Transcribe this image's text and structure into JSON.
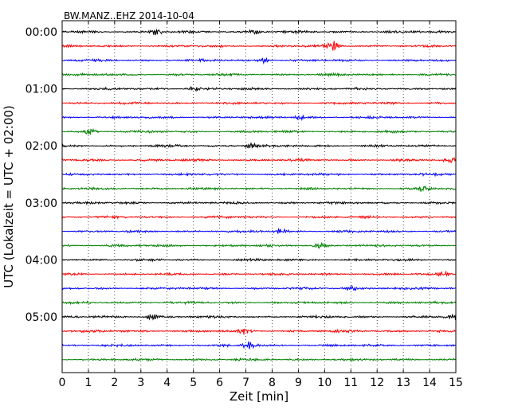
{
  "chart_data": {
    "type": "line",
    "title": "BW.MANZ..EHZ 2014-10-04",
    "xlabel": "Zeit  [min]",
    "ylabel": "UTC (Lokalzeit = UTC + 02:00)",
    "xlim": [
      0,
      15
    ],
    "xticks": [
      "0",
      "1",
      "2",
      "3",
      "4",
      "5",
      "6",
      "7",
      "8",
      "9",
      "10",
      "11",
      "12",
      "13",
      "14",
      "15"
    ],
    "yticks": [
      "00:00",
      "01:00",
      "02:00",
      "03:00",
      "04:00",
      "05:00"
    ],
    "trace_interval_min": 15,
    "n_traces": 24,
    "grid": "vertical dotted at each minute",
    "trace_colors": [
      "#000000",
      "#ff0000",
      "#0000ff",
      "#008000"
    ],
    "bursts": [
      {
        "trace": 0,
        "x": 3.6,
        "amp": 1.8
      },
      {
        "trace": 0,
        "x": 7.3,
        "amp": 1.5
      },
      {
        "trace": 1,
        "x": 10.3,
        "amp": 3.0
      },
      {
        "trace": 2,
        "x": 7.7,
        "amp": 1.6
      },
      {
        "trace": 4,
        "x": 5.0,
        "amp": 1.8
      },
      {
        "trace": 6,
        "x": 9.1,
        "amp": 1.5
      },
      {
        "trace": 7,
        "x": 1.0,
        "amp": 2.2
      },
      {
        "trace": 8,
        "x": 7.2,
        "amp": 1.7
      },
      {
        "trace": 9,
        "x": 14.8,
        "amp": 1.6
      },
      {
        "trace": 11,
        "x": 13.8,
        "amp": 1.8
      },
      {
        "trace": 14,
        "x": 8.3,
        "amp": 1.6
      },
      {
        "trace": 15,
        "x": 9.8,
        "amp": 1.4
      },
      {
        "trace": 17,
        "x": 14.6,
        "amp": 1.6
      },
      {
        "trace": 18,
        "x": 11.0,
        "amp": 1.6
      },
      {
        "trace": 20,
        "x": 3.4,
        "amp": 1.6
      },
      {
        "trace": 20,
        "x": 14.9,
        "amp": 1.8
      },
      {
        "trace": 21,
        "x": 6.9,
        "amp": 1.8
      },
      {
        "trace": 22,
        "x": 7.1,
        "amp": 2.6
      }
    ]
  }
}
